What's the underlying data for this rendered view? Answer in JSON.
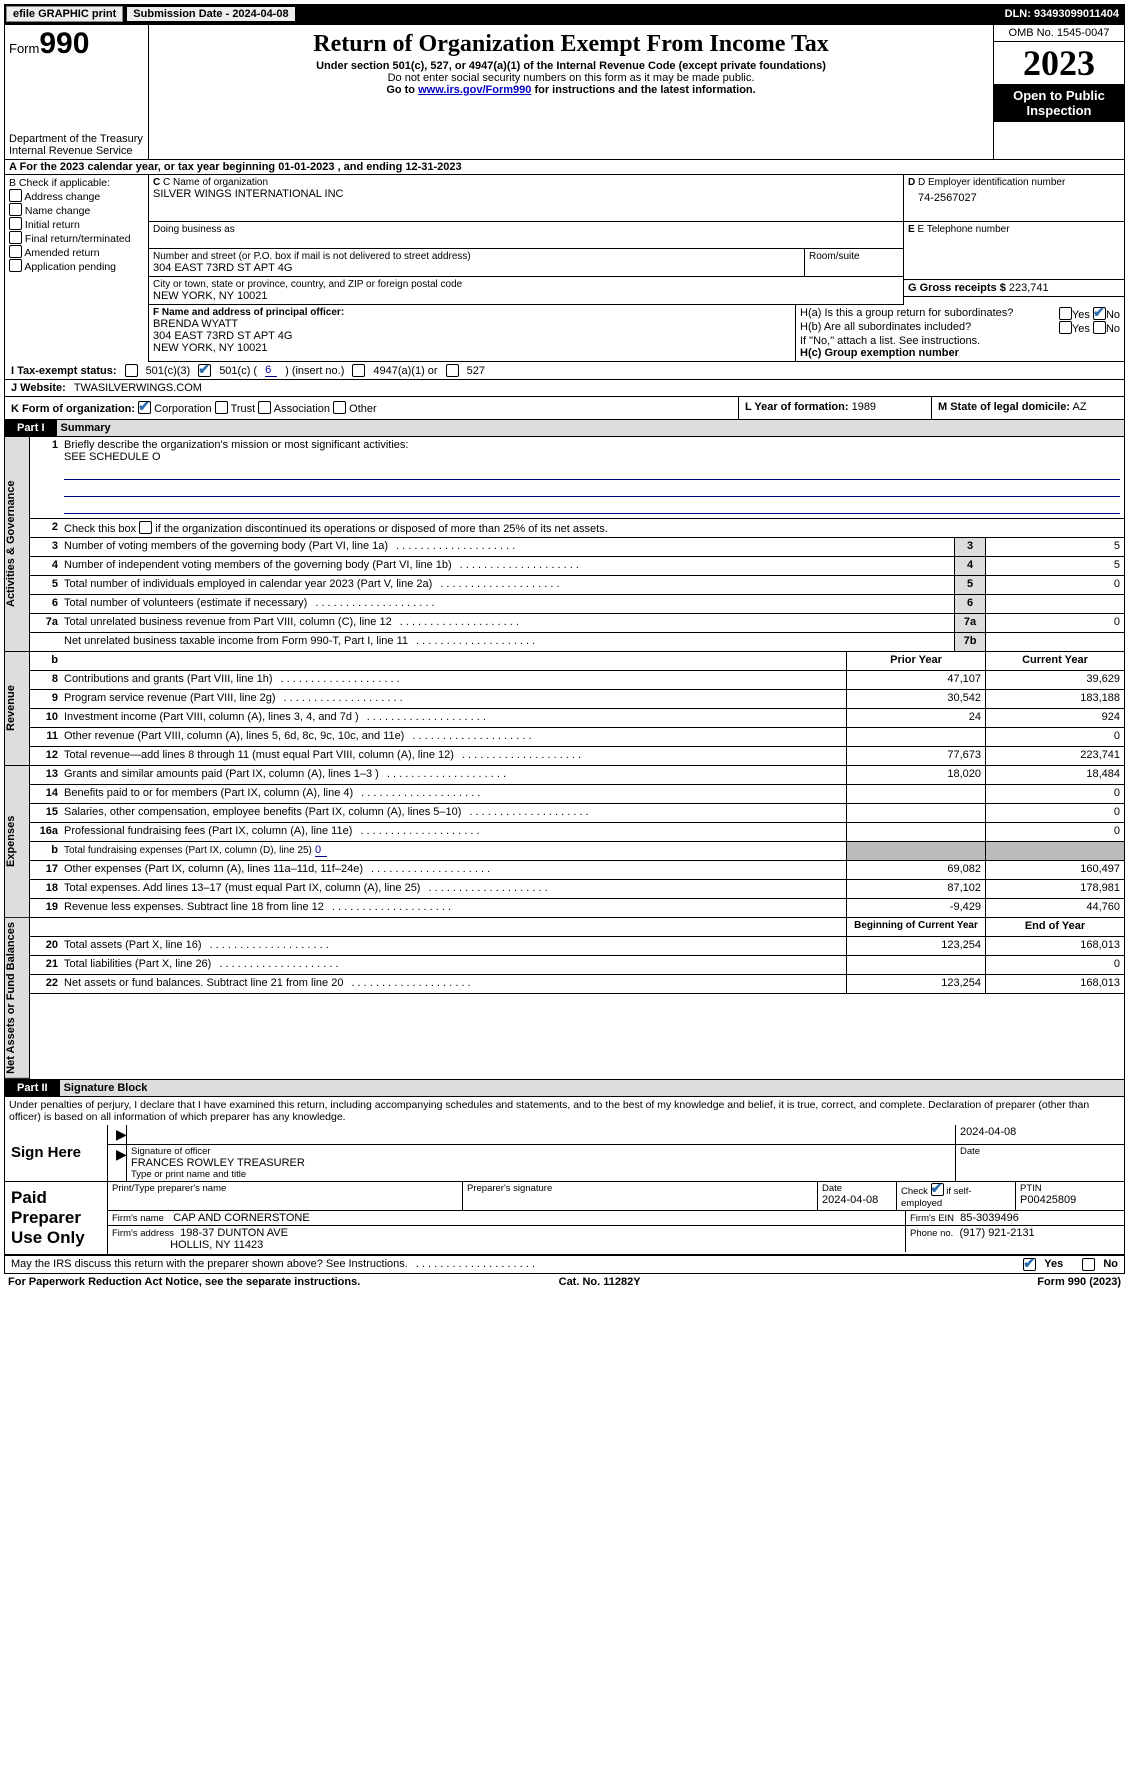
{
  "top": {
    "efile": "efile GRAPHIC print",
    "submission": "Submission Date - 2024-04-08",
    "dln": "DLN: 93493099011404"
  },
  "header": {
    "form_label": "Form",
    "form_no": "990",
    "dept": "Department of the Treasury",
    "irs": "Internal Revenue Service",
    "title": "Return of Organization Exempt From Income Tax",
    "sub1": "Under section 501(c), 527, or 4947(a)(1) of the Internal Revenue Code (except private foundations)",
    "sub2": "Do not enter social security numbers on this form as it may be made public.",
    "sub3_pre": "Go to ",
    "sub3_link": "www.irs.gov/Form990",
    "sub3_post": " for instructions and the latest information.",
    "omb": "OMB No. 1545-0047",
    "year": "2023",
    "open": "Open to Public Inspection"
  },
  "rowA": "A For the 2023 calendar year, or tax year beginning 01-01-2023     , and ending 12-31-2023",
  "b": {
    "hdr": "B Check if applicable:",
    "items": [
      "Address change",
      "Name change",
      "Initial return",
      "Final return/terminated",
      "Amended return",
      "Application pending"
    ]
  },
  "c": {
    "name_lbl": "C Name of organization",
    "name": "SILVER WINGS INTERNATIONAL INC",
    "dba_lbl": "Doing business as",
    "addr_lbl": "Number and street (or P.O. box if mail is not delivered to street address)",
    "room_lbl": "Room/suite",
    "addr": "304 EAST 73RD ST APT 4G",
    "city_lbl": "City or town, state or province, country, and ZIP or foreign postal code",
    "city": "NEW YORK, NY  10021"
  },
  "d": {
    "lbl": "D Employer identification number",
    "val": "74-2567027"
  },
  "e": {
    "lbl": "E Telephone number",
    "val": ""
  },
  "g": {
    "lbl": "G Gross receipts $",
    "val": "223,741"
  },
  "f": {
    "lbl": "F  Name and address of principal officer:",
    "name": "BRENDA WYATT",
    "addr1": "304 EAST 73RD ST APT 4G",
    "addr2": "NEW YORK, NY  10021"
  },
  "h": {
    "a": "H(a)  Is this a group return for subordinates?",
    "b": "H(b)  Are all subordinates included?",
    "b_note": "If \"No,\" attach a list. See instructions.",
    "c": "H(c)  Group exemption number",
    "yes": "Yes",
    "no": "No"
  },
  "i": {
    "lbl": "I    Tax-exempt status:",
    "o1": "501(c)(3)",
    "o2_pre": "501(c) (",
    "o2_val": "6",
    "o2_post": ") (insert no.)",
    "o3": "4947(a)(1) or",
    "o4": "527"
  },
  "j": {
    "lbl": "J    Website:",
    "val": "TWASILVERWINGS.COM"
  },
  "k": {
    "lbl": "K Form of organization:",
    "corp": "Corporation",
    "trust": "Trust",
    "assoc": "Association",
    "other": "Other"
  },
  "l": {
    "lbl": "L Year of formation:",
    "val": "1989"
  },
  "m": {
    "lbl": "M State of legal domicile:",
    "val": "AZ"
  },
  "part1": {
    "tag": "Part I",
    "title": "Summary"
  },
  "sideLabels": {
    "ag": "Activities & Governance",
    "rev": "Revenue",
    "exp": "Expenses",
    "net": "Net Assets or Fund Balances"
  },
  "line1": {
    "t": "Briefly describe the organization's mission or most significant activities:",
    "v": "SEE SCHEDULE O"
  },
  "line2": "Check this box      if the organization discontinued its operations or disposed of more than 25% of its net assets.",
  "govLines": [
    {
      "n": "3",
      "t": "Number of voting members of the governing body (Part VI, line 1a)",
      "c": "3",
      "v": "5"
    },
    {
      "n": "4",
      "t": "Number of independent voting members of the governing body (Part VI, line 1b)",
      "c": "4",
      "v": "5"
    },
    {
      "n": "5",
      "t": "Total number of individuals employed in calendar year 2023 (Part V, line 2a)",
      "c": "5",
      "v": "0"
    },
    {
      "n": "6",
      "t": "Total number of volunteers (estimate if necessary)",
      "c": "6",
      "v": ""
    },
    {
      "n": "7a",
      "t": "Total unrelated business revenue from Part VIII, column (C), line 12",
      "c": "7a",
      "v": "0"
    },
    {
      "n": "",
      "t": "Net unrelated business taxable income from Form 990-T, Part I, line 11",
      "c": "7b",
      "v": ""
    }
  ],
  "colHdr": {
    "b": "b",
    "prior": "Prior Year",
    "curr": "Current Year"
  },
  "revLines": [
    {
      "n": "8",
      "t": "Contributions and grants (Part VIII, line 1h)",
      "p": "47,107",
      "c": "39,629"
    },
    {
      "n": "9",
      "t": "Program service revenue (Part VIII, line 2g)",
      "p": "30,542",
      "c": "183,188"
    },
    {
      "n": "10",
      "t": "Investment income (Part VIII, column (A), lines 3, 4, and 7d )",
      "p": "24",
      "c": "924"
    },
    {
      "n": "11",
      "t": "Other revenue (Part VIII, column (A), lines 5, 6d, 8c, 9c, 10c, and 11e)",
      "p": "",
      "c": "0"
    },
    {
      "n": "12",
      "t": "Total revenue—add lines 8 through 11 (must equal Part VIII, column (A), line 12)",
      "p": "77,673",
      "c": "223,741"
    }
  ],
  "expLines": [
    {
      "n": "13",
      "t": "Grants and similar amounts paid (Part IX, column (A), lines 1–3 )",
      "p": "18,020",
      "c": "18,484"
    },
    {
      "n": "14",
      "t": "Benefits paid to or for members (Part IX, column (A), line 4)",
      "p": "",
      "c": "0"
    },
    {
      "n": "15",
      "t": "Salaries, other compensation, employee benefits (Part IX, column (A), lines 5–10)",
      "p": "",
      "c": "0"
    },
    {
      "n": "16a",
      "t": "Professional fundraising fees (Part IX, column (A), line 11e)",
      "p": "",
      "c": "0"
    }
  ],
  "line16b": {
    "n": "b",
    "t": "Total fundraising expenses (Part IX, column (D), line 25)",
    "v": "0"
  },
  "expLines2": [
    {
      "n": "17",
      "t": "Other expenses (Part IX, column (A), lines 11a–11d, 11f–24e)",
      "p": "69,082",
      "c": "160,497"
    },
    {
      "n": "18",
      "t": "Total expenses. Add lines 13–17 (must equal Part IX, column (A), line 25)",
      "p": "87,102",
      "c": "178,981"
    },
    {
      "n": "19",
      "t": "Revenue less expenses. Subtract line 18 from line 12",
      "p": "-9,429",
      "c": "44,760"
    }
  ],
  "netHdr": {
    "b": "Beginning of Current Year",
    "e": "End of Year"
  },
  "netLines": [
    {
      "n": "20",
      "t": "Total assets (Part X, line 16)",
      "p": "123,254",
      "c": "168,013"
    },
    {
      "n": "21",
      "t": "Total liabilities (Part X, line 26)",
      "p": "",
      "c": "0"
    },
    {
      "n": "22",
      "t": "Net assets or fund balances. Subtract line 21 from line 20",
      "p": "123,254",
      "c": "168,013"
    }
  ],
  "part2": {
    "tag": "Part II",
    "title": "Signature Block"
  },
  "perjury": "Under penalties of perjury, I declare that I have examined this return, including accompanying schedules and statements, and to the best of my knowledge and belief, it is true, correct, and complete. Declaration of preparer (other than officer) is based on all information of which preparer has any knowledge.",
  "sign": {
    "here": "Sign Here",
    "date": "2024-04-08",
    "sig_lbl": "Signature of officer",
    "date_lbl": "Date",
    "name": "FRANCES ROWLEY  TREASURER",
    "name_lbl": "Type or print name and title"
  },
  "paid": {
    "hdr": "Paid Preparer Use Only",
    "col1": "Print/Type preparer's name",
    "col2": "Preparer's signature",
    "col3_lbl": "Date",
    "col3": "2024-04-08",
    "col4_lbl": "Check         if self-employed",
    "col5_lbl": "PTIN",
    "col5": "P00425809",
    "firm_lbl": "Firm's name",
    "firm": "CAP AND CORNERSTONE",
    "ein_lbl": "Firm's EIN",
    "ein": "85-3039496",
    "addr_lbl": "Firm's address",
    "addr1": "198-37 DUNTON AVE",
    "addr2": "HOLLIS, NY  11423",
    "phone_lbl": "Phone no.",
    "phone": "(917) 921-2131"
  },
  "discuss": {
    "t": "May the IRS discuss this return with the preparer shown above? See Instructions.",
    "yes": "Yes",
    "no": "No"
  },
  "footer": {
    "l": "For Paperwork Reduction Act Notice, see the separate instructions.",
    "m": "Cat. No. 11282Y",
    "r": "Form 990 (2023)"
  }
}
